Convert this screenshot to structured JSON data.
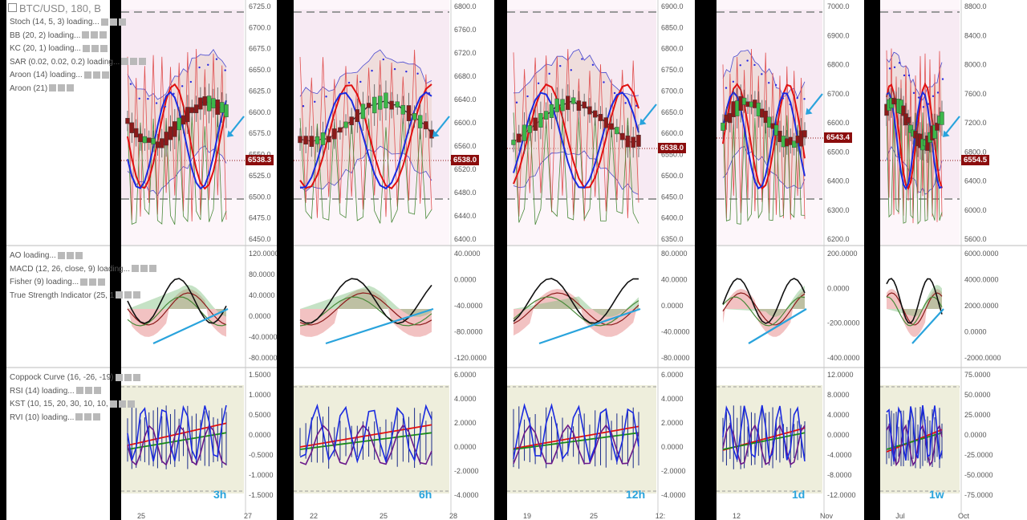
{
  "header": {
    "symbol": "BTC/USD, 180, B"
  },
  "indicators_price": [
    "Stoch (14, 5, 3) loading...",
    "BB (20, 2) loading...",
    "KC (20, 1) loading...",
    "SAR (0.02, 0.02, 0.2) loading...",
    "Aroon (14) loading...",
    "Aroon (21)"
  ],
  "indicators_osc": [
    "AO loading...",
    "MACD (12, 26, close, 9) loading...",
    "Fisher (9) loading...",
    "True Strength Indicator (25, 1"
  ],
  "indicators_bottom": [
    "Coppock Curve (16, -26, -19)",
    "RSI (14) loading...",
    "KST (10, 15, 20, 30, 10, 10,",
    "RVI (10) loading..."
  ],
  "colors": {
    "accent_blue": "#29a3dc",
    "price_tag": "#8b0d0d",
    "bull": "#3cb84a",
    "bear": "#8b1a1a"
  },
  "chart_data": [
    {
      "type": "line",
      "timeframe": "3h",
      "price_axis": [
        "6725.0",
        "6700.0",
        "6675.0",
        "6650.0",
        "6625.0",
        "6600.0",
        "6575.0",
        "6550.0",
        "6525.0",
        "6500.0",
        "6475.0",
        "6450.0"
      ],
      "price_tag": "6538.3",
      "osc_axis": [
        "120.0000",
        "80.0000",
        "40.0000",
        "0.0000",
        "-40.0000",
        "-80.0000"
      ],
      "bottom_axis": [
        "1.5000",
        "1.0000",
        "0.5000",
        "0.0000",
        "-0.5000",
        "-1.0000",
        "-1.5000"
      ],
      "x_ticks": [
        "25",
        "27"
      ]
    },
    {
      "type": "line",
      "timeframe": "6h",
      "price_axis": [
        "6800.0",
        "6760.0",
        "6720.0",
        "6680.0",
        "6640.0",
        "6600.0",
        "6560.0",
        "6520.0",
        "6480.0",
        "6440.0",
        "6400.0"
      ],
      "price_tag": "6538.0",
      "osc_axis": [
        "40.0000",
        "0.0000",
        "-40.0000",
        "-80.0000",
        "-120.0000"
      ],
      "bottom_axis": [
        "6.0000",
        "4.0000",
        "2.0000",
        "0.0000",
        "-2.0000",
        "-4.0000"
      ],
      "x_ticks": [
        "22",
        "25",
        "28"
      ]
    },
    {
      "type": "line",
      "timeframe": "12h",
      "price_axis": [
        "6900.0",
        "6850.0",
        "6800.0",
        "6750.0",
        "6700.0",
        "6650.0",
        "6600.0",
        "6550.0",
        "6500.0",
        "6450.0",
        "6400.0",
        "6350.0"
      ],
      "price_tag": "6538.0",
      "osc_axis": [
        "80.0000",
        "40.0000",
        "0.0000",
        "-40.0000",
        "-80.0000"
      ],
      "bottom_axis": [
        "6.0000",
        "4.0000",
        "2.0000",
        "0.0000",
        "-2.0000",
        "-4.0000"
      ],
      "x_ticks": [
        "19",
        "25",
        "12:"
      ]
    },
    {
      "type": "line",
      "timeframe": "1d",
      "price_axis": [
        "7000.0",
        "6900.0",
        "6800.0",
        "6700.0",
        "6600.0",
        "6500.0",
        "6400.0",
        "6300.0",
        "6200.0"
      ],
      "price_tag": "6543.4",
      "osc_axis": [
        "200.0000",
        "0.0000",
        "-200.0000",
        "-400.0000"
      ],
      "bottom_axis": [
        "12.0000",
        "8.0000",
        "4.0000",
        "0.0000",
        "-4.0000",
        "-8.0000",
        "-12.0000"
      ],
      "x_ticks": [
        "12",
        "Nov"
      ]
    },
    {
      "type": "line",
      "timeframe": "1w",
      "price_axis": [
        "8800.0",
        "8400.0",
        "8000.0",
        "7600.0",
        "7200.0",
        "6800.0",
        "6400.0",
        "6000.0",
        "5600.0"
      ],
      "price_tag": "6554.5",
      "osc_axis": [
        "6000.0000",
        "4000.0000",
        "2000.0000",
        "0.0000",
        "-2000.0000"
      ],
      "bottom_axis": [
        "75.0000",
        "50.0000",
        "25.0000",
        "0.0000",
        "-25.0000",
        "-50.0000",
        "-75.0000"
      ],
      "x_ticks": [
        "Jul",
        "Oct"
      ]
    }
  ]
}
